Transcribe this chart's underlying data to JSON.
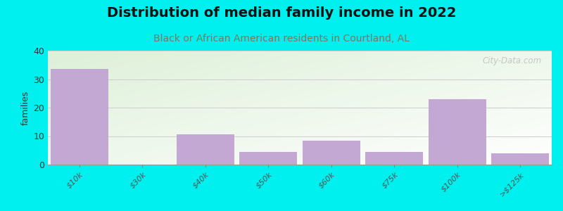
{
  "title": "Distribution of median family income in 2022",
  "subtitle": "Black or African American residents in Courtland, AL",
  "categories": [
    "$10k",
    "$30k",
    "$40k",
    "$50k",
    "$60k",
    "$75k",
    "$100k",
    ">$125k"
  ],
  "values": [
    33.5,
    0,
    10.5,
    4.5,
    8.5,
    4.5,
    23.0,
    4.0
  ],
  "bar_color": "#c4a8d4",
  "ylabel": "families",
  "ylim": [
    0,
    40
  ],
  "yticks": [
    0,
    10,
    20,
    30,
    40
  ],
  "background_color": "#00efef",
  "plot_bg_topleft": "#ddf0d8",
  "plot_bg_bottomright": "#f8f8f8",
  "title_fontsize": 14,
  "subtitle_fontsize": 10,
  "subtitle_color": "#8b7355",
  "watermark": "City-Data.com"
}
